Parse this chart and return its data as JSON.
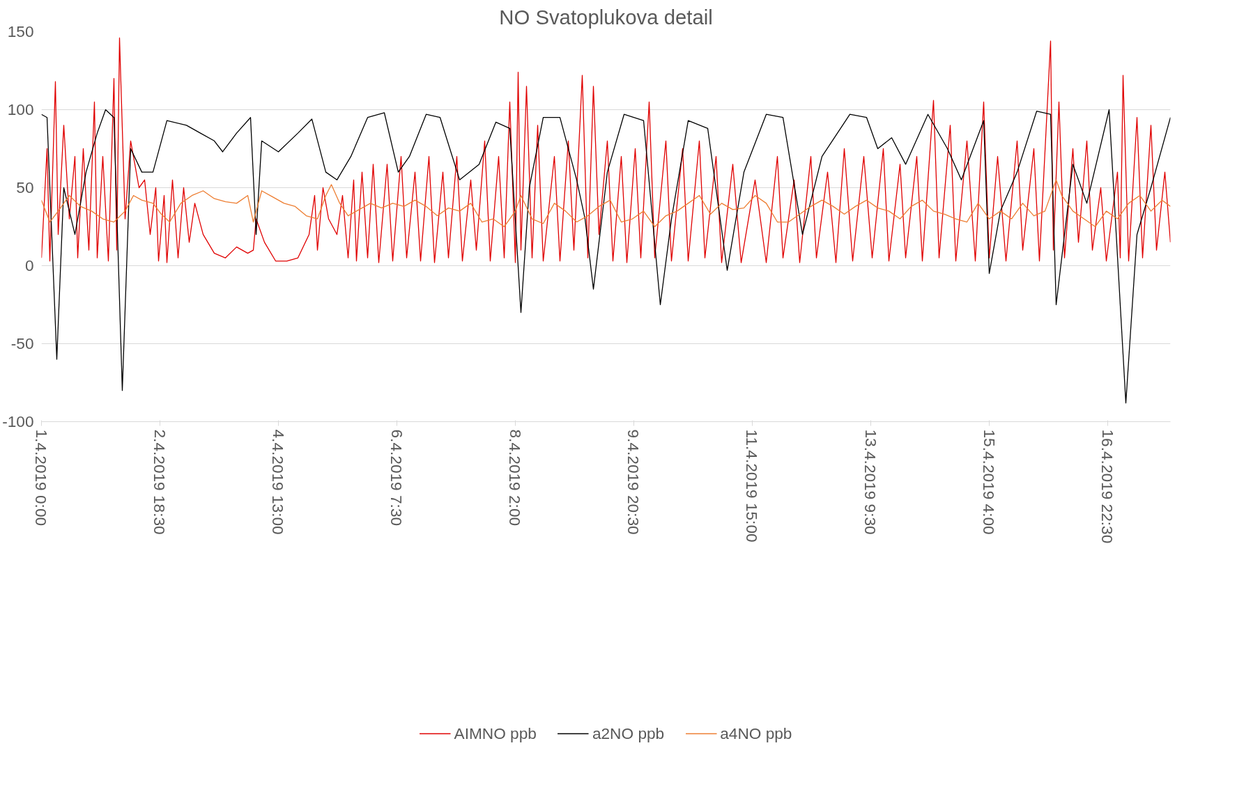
{
  "chart_data": {
    "type": "line",
    "title": "NO Svatoplukova detail",
    "xlim": [
      "2019-04-01T00:00",
      "2019-04-17T21:00"
    ],
    "ylim": [
      -100,
      150
    ],
    "xticks": [
      {
        "value": "2019-04-01T00:00",
        "label": "1.4.2019 0:00"
      },
      {
        "value": "2019-04-02T18:30",
        "label": "2.4.2019 18:30"
      },
      {
        "value": "2019-04-04T13:00",
        "label": "4.4.2019 13:00"
      },
      {
        "value": "2019-04-06T07:30",
        "label": "6.4.2019 7:30"
      },
      {
        "value": "2019-04-08T02:00",
        "label": "8.4.2019 2:00"
      },
      {
        "value": "2019-04-09T20:30",
        "label": "9.4.2019 20:30"
      },
      {
        "value": "2019-04-11T15:00",
        "label": "11.4.2019 15:00"
      },
      {
        "value": "2019-04-13T09:30",
        "label": "13.4.2019 9:30"
      },
      {
        "value": "2019-04-15T04:00",
        "label": "15.4.2019 4:00"
      },
      {
        "value": "2019-04-16T22:30",
        "label": "16.4.2019 22:30"
      }
    ],
    "yticks": [
      -100,
      -50,
      0,
      50,
      100,
      150
    ],
    "grid": "y",
    "legend": "bottom",
    "series": [
      {
        "name": "AIMNO ppb",
        "color": "#e00000",
        "x": [
          "2019-04-01T00:00",
          "2019-04-01T02:00",
          "2019-04-01T03:00",
          "2019-04-01T05:00",
          "2019-04-01T06:00",
          "2019-04-01T08:00",
          "2019-04-01T10:00",
          "2019-04-01T12:00",
          "2019-04-01T13:00",
          "2019-04-01T15:00",
          "2019-04-01T17:00",
          "2019-04-01T19:00",
          "2019-04-01T20:00",
          "2019-04-01T22:00",
          "2019-04-02T00:00",
          "2019-04-02T02:00",
          "2019-04-02T03:00",
          "2019-04-02T04:00",
          "2019-04-02T06:00",
          "2019-04-02T08:00",
          "2019-04-02T11:00",
          "2019-04-02T13:00",
          "2019-04-02T15:00",
          "2019-04-02T17:00",
          "2019-04-02T18:00",
          "2019-04-02T20:00",
          "2019-04-02T21:00",
          "2019-04-02T23:00",
          "2019-04-03T01:00",
          "2019-04-03T03:00",
          "2019-04-03T05:00",
          "2019-04-03T07:00",
          "2019-04-03T10:00",
          "2019-04-03T14:00",
          "2019-04-03T18:00",
          "2019-04-03T22:00",
          "2019-04-04T02:00",
          "2019-04-04T04:00",
          "2019-04-04T05:00",
          "2019-04-04T08:00",
          "2019-04-04T12:00",
          "2019-04-04T16:00",
          "2019-04-04T20:00",
          "2019-04-05T00:00",
          "2019-04-05T02:00",
          "2019-04-05T03:00",
          "2019-04-05T05:00",
          "2019-04-05T07:00",
          "2019-04-05T10:00",
          "2019-04-05T12:00",
          "2019-04-05T14:00",
          "2019-04-05T16:00",
          "2019-04-05T17:00",
          "2019-04-05T19:00",
          "2019-04-05T21:00",
          "2019-04-05T23:00",
          "2019-04-06T01:00",
          "2019-04-06T04:00",
          "2019-04-06T06:00",
          "2019-04-06T09:00",
          "2019-04-06T11:00",
          "2019-04-06T14:00",
          "2019-04-06T16:00",
          "2019-04-06T19:00",
          "2019-04-06T21:00",
          "2019-04-07T00:00",
          "2019-04-07T02:00",
          "2019-04-07T05:00",
          "2019-04-07T07:00",
          "2019-04-07T10:00",
          "2019-04-07T12:00",
          "2019-04-07T15:00",
          "2019-04-07T17:00",
          "2019-04-07T20:00",
          "2019-04-07T22:00",
          "2019-04-08T00:00",
          "2019-04-08T02:00",
          "2019-04-08T03:00",
          "2019-04-08T04:00",
          "2019-04-08T06:00",
          "2019-04-08T08:00",
          "2019-04-08T10:00",
          "2019-04-08T12:00",
          "2019-04-08T16:00",
          "2019-04-08T18:00",
          "2019-04-08T21:00",
          "2019-04-08T23:00",
          "2019-04-09T02:00",
          "2019-04-09T04:00",
          "2019-04-09T06:00",
          "2019-04-09T08:00",
          "2019-04-09T11:00",
          "2019-04-09T13:00",
          "2019-04-09T16:00",
          "2019-04-09T18:00",
          "2019-04-09T21:00",
          "2019-04-09T23:00",
          "2019-04-10T02:00",
          "2019-04-10T04:00",
          "2019-04-10T08:00",
          "2019-04-10T10:00",
          "2019-04-10T14:00",
          "2019-04-10T16:00",
          "2019-04-10T20:00",
          "2019-04-10T22:00",
          "2019-04-11T02:00",
          "2019-04-11T04:00",
          "2019-04-11T08:00",
          "2019-04-11T11:00",
          "2019-04-11T16:00",
          "2019-04-11T20:00",
          "2019-04-12T00:00",
          "2019-04-12T02:00",
          "2019-04-12T06:00",
          "2019-04-12T08:00",
          "2019-04-12T12:00",
          "2019-04-12T14:00",
          "2019-04-12T18:00",
          "2019-04-12T21:00",
          "2019-04-13T00:00",
          "2019-04-13T03:00",
          "2019-04-13T07:00",
          "2019-04-13T10:00",
          "2019-04-13T14:00",
          "2019-04-13T16:00",
          "2019-04-13T20:00",
          "2019-04-13T22:00",
          "2019-04-14T02:00",
          "2019-04-14T04:00",
          "2019-04-14T08:00",
          "2019-04-14T10:00",
          "2019-04-14T14:00",
          "2019-04-14T16:00",
          "2019-04-14T20:00",
          "2019-04-14T23:00",
          "2019-04-15T02:00",
          "2019-04-15T04:00",
          "2019-04-15T07:00",
          "2019-04-15T10:00",
          "2019-04-15T14:00",
          "2019-04-15T16:00",
          "2019-04-15T20:00",
          "2019-04-15T22:00",
          "2019-04-16T02:00",
          "2019-04-16T03:00",
          "2019-04-16T05:00",
          "2019-04-16T07:00",
          "2019-04-16T10:00",
          "2019-04-16T12:00",
          "2019-04-16T15:00",
          "2019-04-16T17:00",
          "2019-04-16T20:00",
          "2019-04-16T22:00",
          "2019-04-17T02:00",
          "2019-04-17T03:00",
          "2019-04-17T04:00",
          "2019-04-17T06:00",
          "2019-04-17T09:00",
          "2019-04-17T11:00",
          "2019-04-17T14:00",
          "2019-04-17T16:00",
          "2019-04-17T19:00",
          "2019-04-17T21:00"
        ],
        "values": [
          5,
          75,
          3,
          118,
          20,
          90,
          30,
          70,
          5,
          75,
          10,
          105,
          5,
          70,
          3,
          120,
          10,
          146,
          30,
          80,
          50,
          55,
          20,
          50,
          3,
          45,
          2,
          55,
          5,
          50,
          15,
          40,
          20,
          8,
          5,
          12,
          8,
          10,
          30,
          15,
          3,
          3,
          5,
          20,
          45,
          10,
          50,
          30,
          20,
          45,
          5,
          55,
          3,
          60,
          5,
          65,
          2,
          65,
          3,
          70,
          5,
          60,
          3,
          70,
          2,
          60,
          5,
          70,
          3,
          55,
          10,
          80,
          3,
          70,
          5,
          105,
          2,
          124,
          10,
          115,
          5,
          90,
          3,
          70,
          3,
          80,
          10,
          122,
          5,
          115,
          20,
          80,
          3,
          70,
          2,
          75,
          5,
          105,
          5,
          80,
          3,
          75,
          3,
          80,
          5,
          70,
          2,
          65,
          2,
          55,
          2,
          70,
          5,
          55,
          2,
          70,
          5,
          60,
          2,
          75,
          3,
          70,
          5,
          75,
          3,
          65,
          5,
          70,
          3,
          106,
          5,
          90,
          3,
          80,
          3,
          105,
          5,
          70,
          3,
          80,
          10,
          75,
          3,
          144,
          10,
          105,
          5,
          75,
          15,
          80,
          10,
          50,
          3,
          60,
          5,
          122,
          3,
          95,
          5,
          90,
          10,
          60,
          15
        ]
      },
      {
        "name": "a2NO ppb",
        "color": "#000000",
        "x": [
          "2019-04-01T00:00",
          "2019-04-01T02:00",
          "2019-04-01T05:30",
          "2019-04-01T08:00",
          "2019-04-01T12:00",
          "2019-04-01T16:00",
          "2019-04-01T20:00",
          "2019-04-01T23:00",
          "2019-04-02T02:00",
          "2019-04-02T05:00",
          "2019-04-02T08:00",
          "2019-04-02T12:00",
          "2019-04-02T16:00",
          "2019-04-02T21:00",
          "2019-04-03T04:00",
          "2019-04-03T09:00",
          "2019-04-03T14:00",
          "2019-04-03T17:00",
          "2019-04-03T22:00",
          "2019-04-04T03:00",
          "2019-04-04T05:00",
          "2019-04-04T07:00",
          "2019-04-04T13:00",
          "2019-04-04T20:00",
          "2019-04-05T01:00",
          "2019-04-05T06:00",
          "2019-04-05T10:00",
          "2019-04-05T15:00",
          "2019-04-05T21:00",
          "2019-04-06T03:00",
          "2019-04-06T08:00",
          "2019-04-06T12:00",
          "2019-04-06T18:00",
          "2019-04-06T23:00",
          "2019-04-07T06:00",
          "2019-04-07T13:00",
          "2019-04-07T19:00",
          "2019-04-08T00:00",
          "2019-04-08T04:00",
          "2019-04-08T07:00",
          "2019-04-08T12:00",
          "2019-04-08T18:00",
          "2019-04-09T00:00",
          "2019-04-09T03:00",
          "2019-04-09T06:00",
          "2019-04-09T11:00",
          "2019-04-09T17:00",
          "2019-04-10T00:00",
          "2019-04-10T06:00",
          "2019-04-10T10:00",
          "2019-04-10T16:00",
          "2019-04-10T23:00",
          "2019-04-11T06:00",
          "2019-04-11T12:00",
          "2019-04-11T20:00",
          "2019-04-12T02:00",
          "2019-04-12T09:00",
          "2019-04-12T16:00",
          "2019-04-13T02:00",
          "2019-04-13T08:00",
          "2019-04-13T12:00",
          "2019-04-13T17:00",
          "2019-04-13T22:00",
          "2019-04-14T06:00",
          "2019-04-14T13:00",
          "2019-04-14T18:00",
          "2019-04-15T02:00",
          "2019-04-15T04:00",
          "2019-04-15T08:00",
          "2019-04-15T14:00",
          "2019-04-15T21:00",
          "2019-04-16T02:00",
          "2019-04-16T04:00",
          "2019-04-16T10:00",
          "2019-04-16T15:00",
          "2019-04-16T23:00",
          "2019-04-17T05:00",
          "2019-04-17T09:00",
          "2019-04-17T14:00",
          "2019-04-17T21:00"
        ],
        "values": [
          97,
          95,
          -60,
          50,
          20,
          60,
          85,
          100,
          95,
          -80,
          75,
          60,
          60,
          93,
          90,
          85,
          80,
          73,
          85,
          95,
          20,
          80,
          73,
          85,
          94,
          60,
          55,
          70,
          95,
          98,
          60,
          70,
          97,
          95,
          55,
          65,
          92,
          88,
          -30,
          50,
          95,
          95,
          55,
          30,
          -15,
          60,
          97,
          93,
          -25,
          30,
          93,
          88,
          -3,
          60,
          97,
          95,
          20,
          70,
          97,
          95,
          75,
          82,
          65,
          97,
          75,
          55,
          93,
          -5,
          35,
          60,
          99,
          97,
          -25,
          65,
          40,
          100,
          -88,
          20,
          50,
          95
        ]
      },
      {
        "name": "a4NO ppb",
        "color": "#ed7d31",
        "x": [
          "2019-04-01T00:00",
          "2019-04-01T03:00",
          "2019-04-01T06:00",
          "2019-04-01T10:00",
          "2019-04-01T14:00",
          "2019-04-01T18:00",
          "2019-04-01T22:00",
          "2019-04-02T02:00",
          "2019-04-02T06:00",
          "2019-04-02T09:00",
          "2019-04-02T12:00",
          "2019-04-02T16:00",
          "2019-04-02T19:00",
          "2019-04-02T22:00",
          "2019-04-03T02:00",
          "2019-04-03T06:00",
          "2019-04-03T10:00",
          "2019-04-03T14:00",
          "2019-04-03T18:00",
          "2019-04-03T22:00",
          "2019-04-04T02:00",
          "2019-04-04T04:00",
          "2019-04-04T07:00",
          "2019-04-04T11:00",
          "2019-04-04T15:00",
          "2019-04-04T19:00",
          "2019-04-04T23:00",
          "2019-04-05T03:00",
          "2019-04-05T06:00",
          "2019-04-05T08:00",
          "2019-04-05T11:00",
          "2019-04-05T14:00",
          "2019-04-05T18:00",
          "2019-04-05T22:00",
          "2019-04-06T02:00",
          "2019-04-06T06:00",
          "2019-04-06T10:00",
          "2019-04-06T14:00",
          "2019-04-06T18:00",
          "2019-04-06T22:00",
          "2019-04-07T02:00",
          "2019-04-07T06:00",
          "2019-04-07T10:00",
          "2019-04-07T14:00",
          "2019-04-07T18:00",
          "2019-04-07T22:00",
          "2019-04-08T02:00",
          "2019-04-08T04:00",
          "2019-04-08T08:00",
          "2019-04-08T12:00",
          "2019-04-08T16:00",
          "2019-04-08T20:00",
          "2019-04-09T00:00",
          "2019-04-09T04:00",
          "2019-04-09T08:00",
          "2019-04-09T12:00",
          "2019-04-09T16:00",
          "2019-04-09T20:00",
          "2019-04-10T00:00",
          "2019-04-10T04:00",
          "2019-04-10T08:00",
          "2019-04-10T12:00",
          "2019-04-10T16:00",
          "2019-04-10T20:00",
          "2019-04-11T00:00",
          "2019-04-11T04:00",
          "2019-04-11T08:00",
          "2019-04-11T12:00",
          "2019-04-11T16:00",
          "2019-04-11T20:00",
          "2019-04-12T00:00",
          "2019-04-12T04:00",
          "2019-04-12T08:00",
          "2019-04-12T12:00",
          "2019-04-12T16:00",
          "2019-04-12T20:00",
          "2019-04-13T00:00",
          "2019-04-13T04:00",
          "2019-04-13T08:00",
          "2019-04-13T12:00",
          "2019-04-13T16:00",
          "2019-04-13T20:00",
          "2019-04-14T00:00",
          "2019-04-14T04:00",
          "2019-04-14T08:00",
          "2019-04-14T12:00",
          "2019-04-14T16:00",
          "2019-04-14T20:00",
          "2019-04-15T00:00",
          "2019-04-15T04:00",
          "2019-04-15T08:00",
          "2019-04-15T12:00",
          "2019-04-15T16:00",
          "2019-04-15T20:00",
          "2019-04-16T00:00",
          "2019-04-16T04:00",
          "2019-04-16T06:00",
          "2019-04-16T10:00",
          "2019-04-16T14:00",
          "2019-04-16T18:00",
          "2019-04-16T22:00",
          "2019-04-17T02:00",
          "2019-04-17T06:00",
          "2019-04-17T10:00",
          "2019-04-17T14:00",
          "2019-04-17T18:00",
          "2019-04-17T21:00"
        ],
        "values": [
          42,
          28,
          35,
          45,
          38,
          35,
          30,
          28,
          35,
          45,
          42,
          40,
          33,
          28,
          40,
          45,
          48,
          43,
          41,
          40,
          45,
          28,
          48,
          44,
          40,
          38,
          32,
          30,
          45,
          52,
          40,
          32,
          36,
          40,
          37,
          40,
          38,
          42,
          38,
          32,
          37,
          35,
          40,
          28,
          30,
          25,
          35,
          45,
          30,
          27,
          40,
          35,
          28,
          32,
          38,
          42,
          28,
          30,
          35,
          25,
          32,
          35,
          40,
          45,
          33,
          40,
          36,
          37,
          45,
          40,
          28,
          28,
          33,
          38,
          42,
          38,
          33,
          38,
          42,
          37,
          35,
          30,
          38,
          42,
          35,
          33,
          30,
          28,
          40,
          30,
          35,
          30,
          40,
          32,
          35,
          55,
          45,
          35,
          30,
          25,
          35,
          30,
          40,
          45,
          35,
          42,
          38
        ]
      }
    ]
  }
}
